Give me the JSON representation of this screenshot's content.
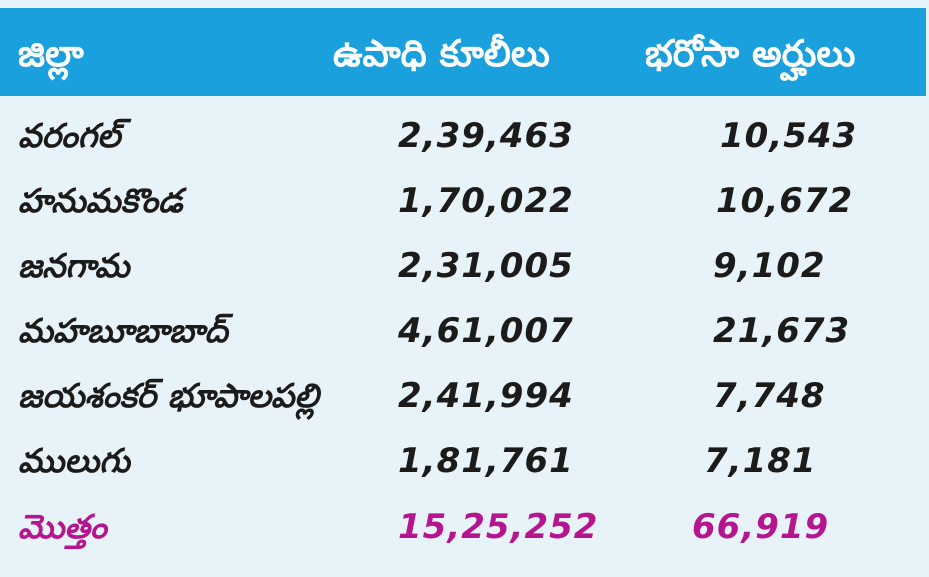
{
  "table": {
    "headers": [
      "జిల్లా",
      "ఉపాధి కూలీలు",
      "భరోసా అర్హులు"
    ],
    "rows": [
      {
        "district": "వరంగల్",
        "workers": "2,39,463",
        "eligible": "10,543"
      },
      {
        "district": "హనుమకొండ",
        "workers": "1,70,022",
        "eligible": "10,672"
      },
      {
        "district": "జనగామ",
        "workers": "2,31,005",
        "eligible": "9,102"
      },
      {
        "district": "మహబూబాబాద్",
        "workers": "4,61,007",
        "eligible": "21,673"
      },
      {
        "district": "జయశంకర్ భూపాలపల్లి",
        "workers": "2,41,994",
        "eligible": "7,748"
      },
      {
        "district": "ములుగు",
        "workers": "1,81,761",
        "eligible": "7,181"
      }
    ],
    "total": {
      "district": "మొత్తం",
      "workers": "15,25,252",
      "eligible": "66,919"
    }
  },
  "colors": {
    "header_bg": "#1aa0dc",
    "body_bg": "#e8f3f9",
    "total_text": "#b5168f",
    "text": "#1b1b1b"
  }
}
